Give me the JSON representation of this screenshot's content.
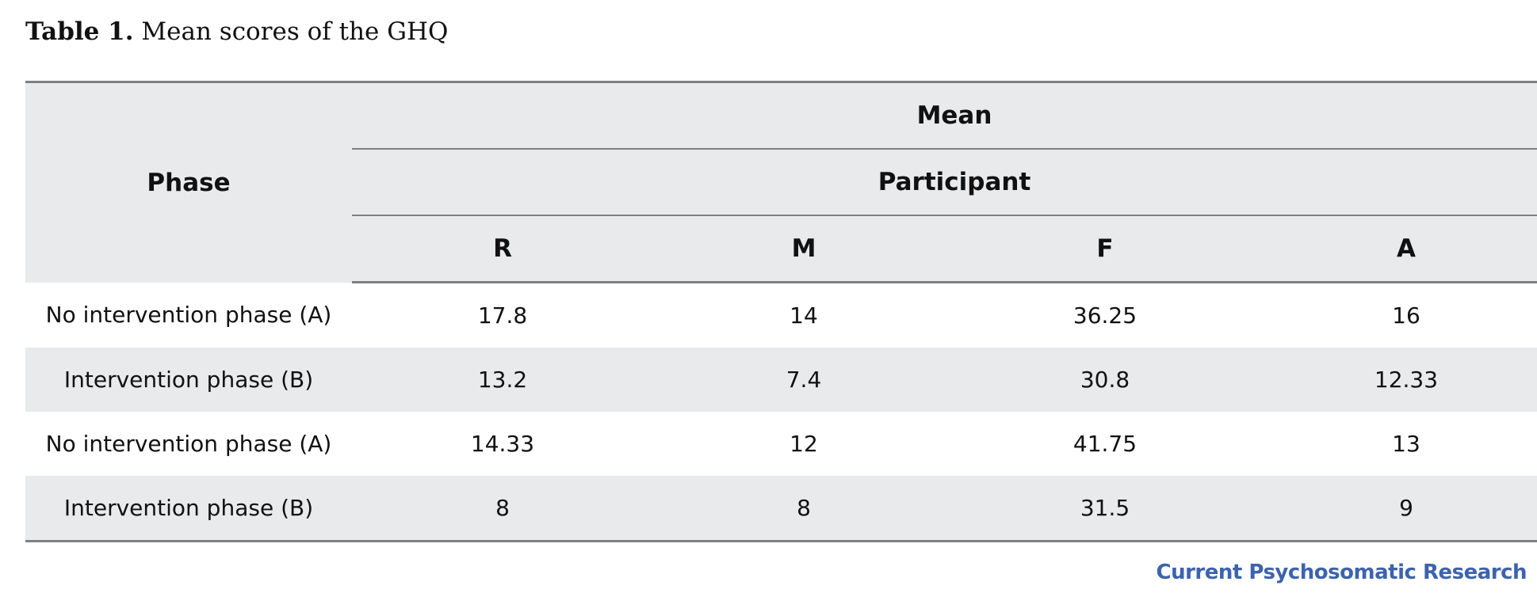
{
  "caption": {
    "label": "Table 1.",
    "text": "Mean scores of the GHQ"
  },
  "table": {
    "headers": {
      "phase": "Phase",
      "mean": "Mean",
      "participant": "Participant",
      "participants": [
        "R",
        "M",
        "F",
        "A"
      ]
    },
    "rows": [
      {
        "phase": "No intervention phase (A)",
        "values": [
          "17.8",
          "14",
          "36.25",
          "16"
        ]
      },
      {
        "phase": "Intervention phase (B)",
        "values": [
          "13.2",
          "7.4",
          "30.8",
          "12.33"
        ]
      },
      {
        "phase": "No intervention phase (A)",
        "values": [
          "14.33",
          "12",
          "41.75",
          "13"
        ]
      },
      {
        "phase": "Intervention phase (B)",
        "values": [
          "8",
          "8",
          "31.5",
          "9"
        ]
      }
    ]
  },
  "footer": {
    "journal": "Current Psychosomatic Research",
    "color": "#3d63ad"
  },
  "colors": {
    "header_bg": "#e9eaec",
    "rule": "#808080"
  }
}
